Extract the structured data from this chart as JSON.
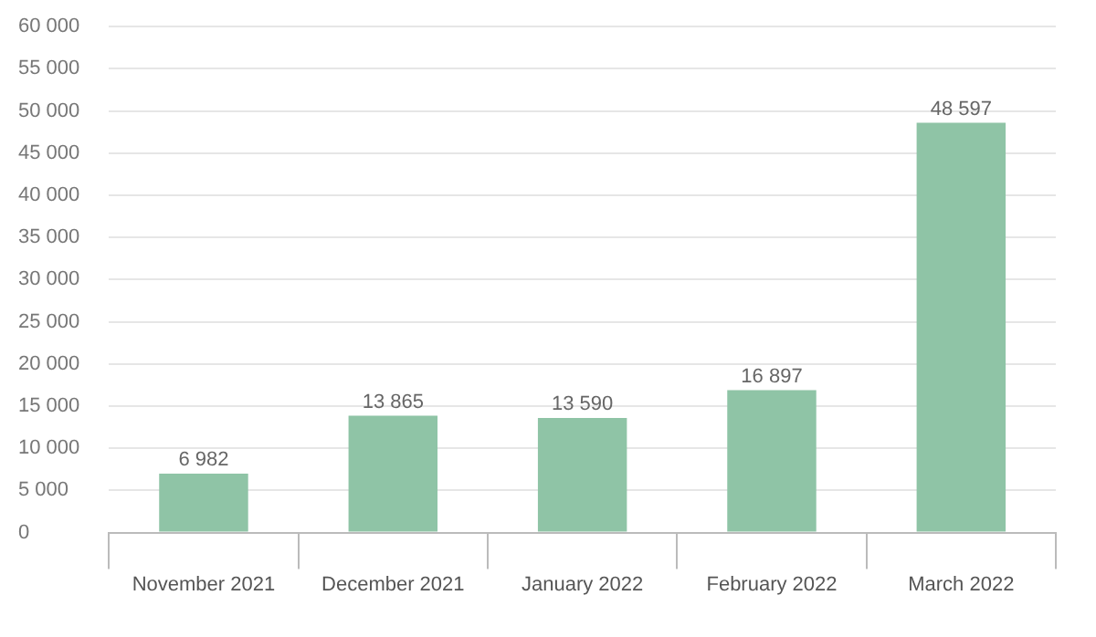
{
  "chart_data": {
    "type": "bar",
    "categories": [
      "November 2021",
      "December 2021",
      "January 2022",
      "February 2022",
      "March 2022"
    ],
    "values": [
      6982,
      13865,
      13590,
      16897,
      48597
    ],
    "value_labels": [
      "6 982",
      "13 865",
      "13 590",
      "16 897",
      "48 597"
    ],
    "color": "#8fc4a6",
    "ylim": [
      0,
      60000
    ],
    "yticks": [
      {
        "value": 0,
        "label": "0"
      },
      {
        "value": 5000,
        "label": "5 000"
      },
      {
        "value": 10000,
        "label": "10 000"
      },
      {
        "value": 15000,
        "label": "15 000"
      },
      {
        "value": 20000,
        "label": "20 000"
      },
      {
        "value": 25000,
        "label": "25 000"
      },
      {
        "value": 30000,
        "label": "30 000"
      },
      {
        "value": 35000,
        "label": "35 000"
      },
      {
        "value": 40000,
        "label": "40 000"
      },
      {
        "value": 45000,
        "label": "45 000"
      },
      {
        "value": 50000,
        "label": "50 000"
      },
      {
        "value": 55000,
        "label": "55 000"
      },
      {
        "value": 60000,
        "label": "60 000"
      }
    ],
    "grid": "y"
  }
}
